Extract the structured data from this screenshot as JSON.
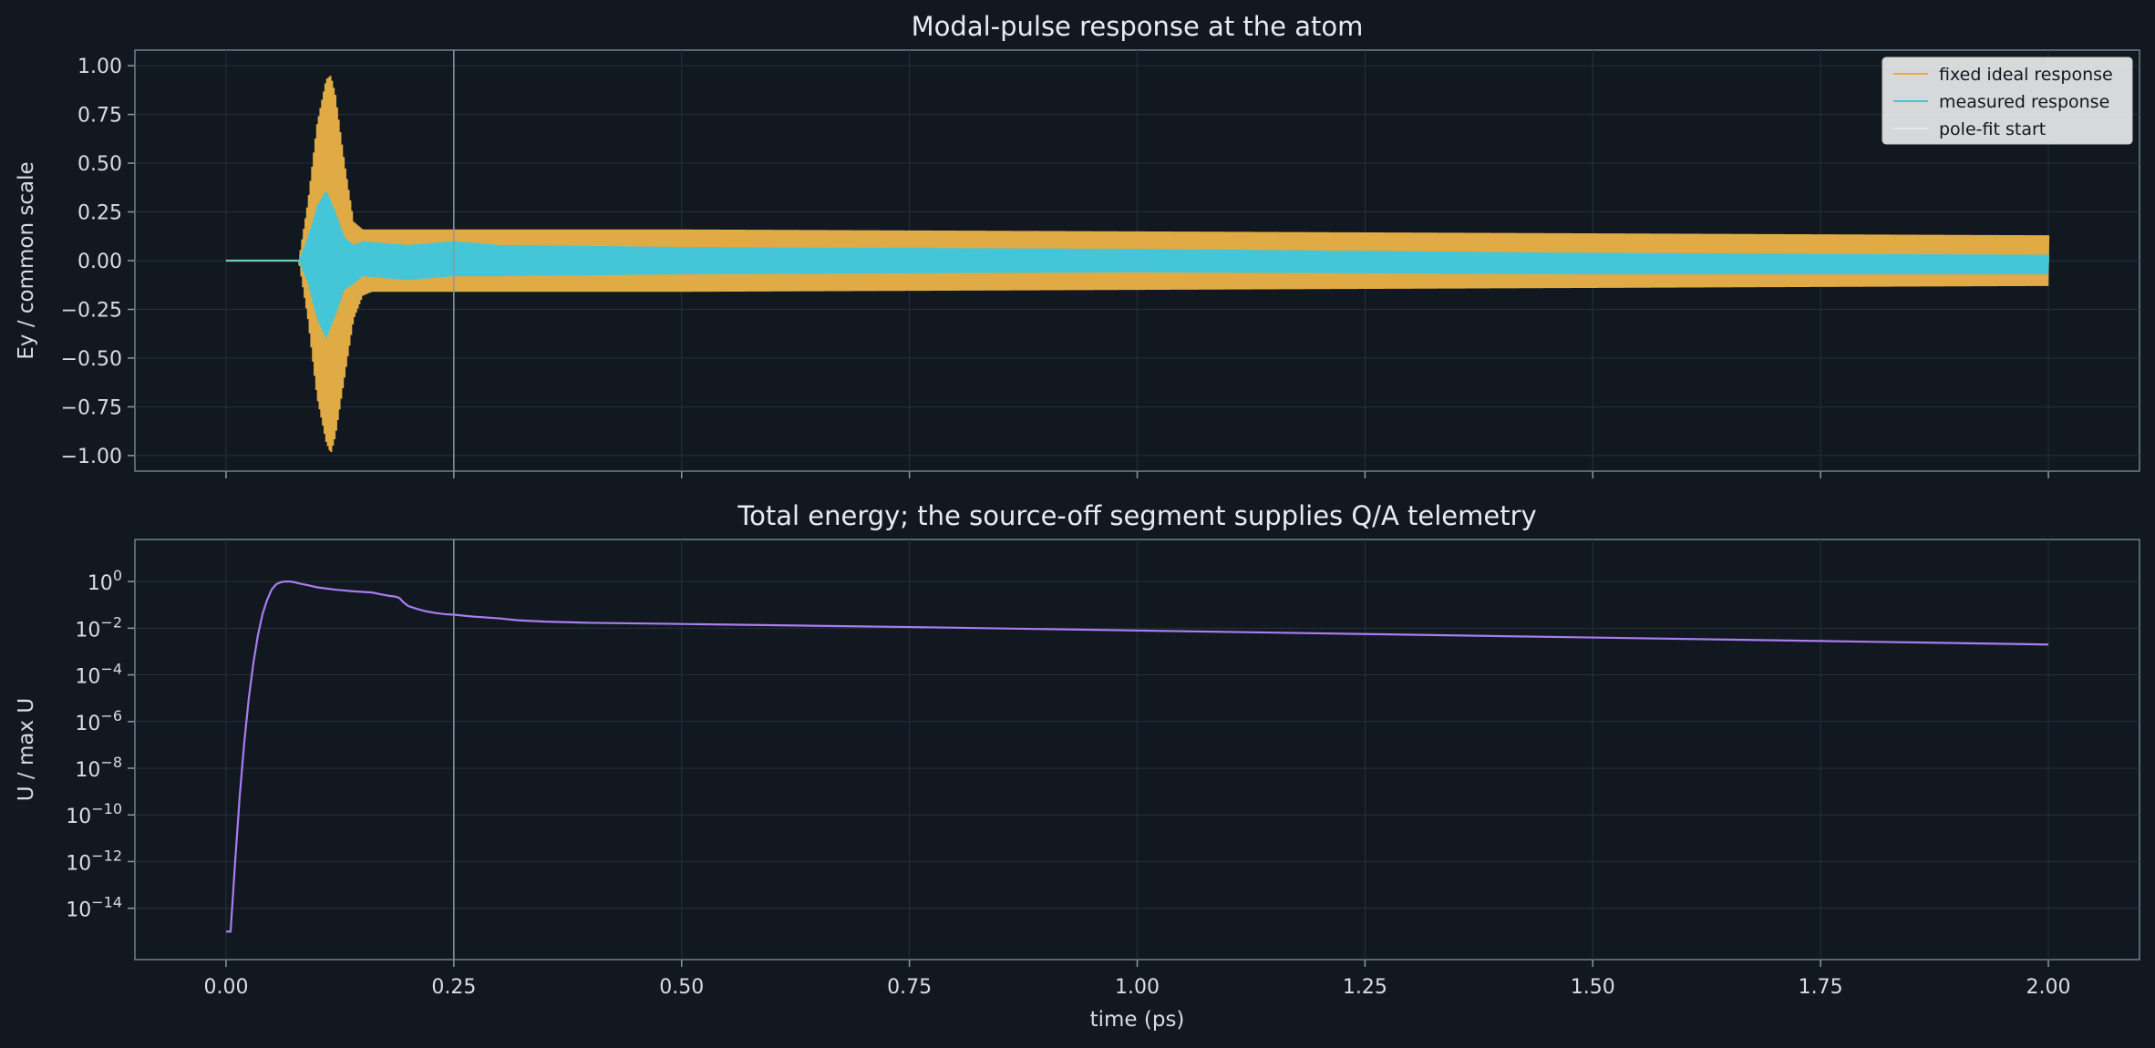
{
  "chart_data": [
    {
      "type": "line",
      "title": "Modal-pulse response at the atom",
      "xlabel": "",
      "ylabel": "Ey / common scale",
      "xlim": [
        -0.1,
        2.1
      ],
      "ylim": [
        -1.08,
        1.08
      ],
      "xticks": [
        0.0,
        0.25,
        0.5,
        0.75,
        1.0,
        1.25,
        1.5,
        1.75,
        2.0
      ],
      "yticks": [
        1.0,
        0.75,
        0.5,
        0.25,
        0.0,
        -0.25,
        -0.5,
        -0.75,
        -1.0
      ],
      "ytick_labels": [
        "1.00",
        "0.75",
        "0.50",
        "0.25",
        "0.00",
        "−0.25",
        "−0.50",
        "−0.75",
        "−1.00"
      ],
      "grid": true,
      "legend_position": "top-right",
      "legend": [
        "fixed ideal response",
        "measured response",
        "pole-fit start"
      ],
      "vline_x": 0.25,
      "series": [
        {
          "name": "fixed ideal response",
          "color": "#e0aa45",
          "envelope_x": [
            0.0,
            0.08,
            0.09,
            0.1,
            0.11,
            0.115,
            0.12,
            0.13,
            0.14,
            0.15,
            0.16,
            0.2,
            0.25,
            0.3,
            0.5,
            1.0,
            1.5,
            2.0
          ],
          "envelope_upper": [
            0.0,
            0.0,
            0.3,
            0.7,
            0.93,
            0.95,
            0.85,
            0.5,
            0.2,
            0.16,
            0.16,
            0.16,
            0.16,
            0.16,
            0.16,
            0.15,
            0.14,
            0.13
          ],
          "envelope_lower": [
            0.0,
            0.0,
            -0.3,
            -0.7,
            -0.93,
            -0.99,
            -0.9,
            -0.6,
            -0.3,
            -0.18,
            -0.16,
            -0.16,
            -0.16,
            -0.16,
            -0.16,
            -0.15,
            -0.14,
            -0.13
          ]
        },
        {
          "name": "measured response",
          "color": "#45c6d8",
          "envelope_x": [
            0.0,
            0.08,
            0.09,
            0.1,
            0.11,
            0.12,
            0.13,
            0.14,
            0.15,
            0.2,
            0.25,
            0.3,
            0.5,
            1.0,
            1.5,
            2.0
          ],
          "envelope_upper": [
            0.0,
            0.0,
            0.12,
            0.28,
            0.36,
            0.25,
            0.12,
            0.08,
            0.1,
            0.08,
            0.1,
            0.08,
            0.07,
            0.06,
            0.04,
            0.03
          ],
          "envelope_lower": [
            0.0,
            0.0,
            -0.12,
            -0.3,
            -0.4,
            -0.28,
            -0.15,
            -0.12,
            -0.08,
            -0.1,
            -0.08,
            -0.08,
            -0.07,
            -0.06,
            -0.07,
            -0.07
          ]
        },
        {
          "name": "pole-fit start",
          "color": "#8a97a3",
          "x": 0.25
        }
      ]
    },
    {
      "type": "line",
      "title": "Total energy; the source-off segment supplies Q/A telemetry",
      "xlabel": "time (ps)",
      "ylabel": "U / max U",
      "scale_y": "log",
      "xlim": [
        -0.1,
        2.1
      ],
      "ylim_log10": [
        -16.2,
        1.8
      ],
      "xticks": [
        0.0,
        0.25,
        0.5,
        0.75,
        1.0,
        1.25,
        1.5,
        1.75,
        2.0
      ],
      "xtick_labels": [
        "0.00",
        "0.25",
        "0.50",
        "0.75",
        "1.00",
        "1.25",
        "1.50",
        "1.75",
        "2.00"
      ],
      "ytick_exponents": [
        0,
        -2,
        -4,
        -6,
        -8,
        -10,
        -12,
        -14
      ],
      "grid": true,
      "vline_x": 0.25,
      "series": [
        {
          "name": "",
          "color": "#a87df0",
          "x": [
            0.0,
            0.005,
            0.01,
            0.015,
            0.02,
            0.025,
            0.03,
            0.035,
            0.04,
            0.045,
            0.05,
            0.055,
            0.06,
            0.065,
            0.07,
            0.075,
            0.08,
            0.09,
            0.1,
            0.12,
            0.14,
            0.16,
            0.17,
            0.18,
            0.185,
            0.19,
            0.195,
            0.2,
            0.21,
            0.22,
            0.23,
            0.24,
            0.25,
            0.27,
            0.3,
            0.32,
            0.35,
            0.4,
            0.5,
            0.75,
            1.0,
            1.25,
            1.5,
            1.75,
            2.0
          ],
          "y_log10": [
            -15.0,
            -15.0,
            -12.0,
            -9.2,
            -6.9,
            -5.0,
            -3.5,
            -2.3,
            -1.4,
            -0.8,
            -0.35,
            -0.12,
            -0.03,
            0.0,
            0.0,
            -0.03,
            -0.08,
            -0.16,
            -0.25,
            -0.35,
            -0.42,
            -0.47,
            -0.55,
            -0.62,
            -0.64,
            -0.7,
            -0.9,
            -1.05,
            -1.18,
            -1.28,
            -1.35,
            -1.4,
            -1.42,
            -1.5,
            -1.58,
            -1.66,
            -1.72,
            -1.77,
            -1.82,
            -1.95,
            -2.1,
            -2.25,
            -2.4,
            -2.55,
            -2.7
          ]
        }
      ]
    }
  ]
}
